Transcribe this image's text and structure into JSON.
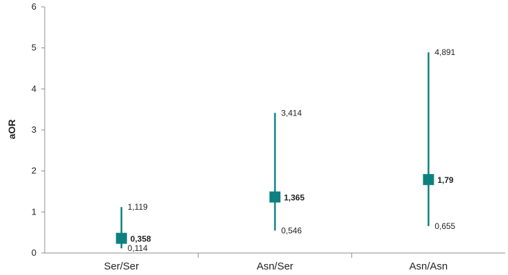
{
  "chart_data": {
    "type": "scatter",
    "subtype": "point-with-error-bars",
    "title": "",
    "xlabel": "",
    "ylabel": "aOR",
    "ylim": [
      0,
      6
    ],
    "yticks": [
      "0",
      "1",
      "2",
      "3",
      "4",
      "5",
      "6"
    ],
    "grid": false,
    "legend": "none",
    "categories": [
      "Ser/Ser",
      "Asn/Ser",
      "Asn/Asn"
    ],
    "points": [
      {
        "category": "Ser/Ser",
        "estimate": 0.358,
        "lower": 0.114,
        "upper": 1.119,
        "estimate_label": "0,358",
        "lower_label": "0,114",
        "upper_label": "1,119"
      },
      {
        "category": "Asn/Ser",
        "estimate": 1.365,
        "lower": 0.546,
        "upper": 3.414,
        "estimate_label": "1,365",
        "lower_label": "0,546",
        "upper_label": "3,414"
      },
      {
        "category": "Asn/Asn",
        "estimate": 1.79,
        "lower": 0.655,
        "upper": 4.891,
        "estimate_label": "1,79",
        "lower_label": "0,655",
        "upper_label": "4,891"
      }
    ],
    "colors": {
      "marker": "#0e8080",
      "axis": "#8c8c8c"
    }
  }
}
